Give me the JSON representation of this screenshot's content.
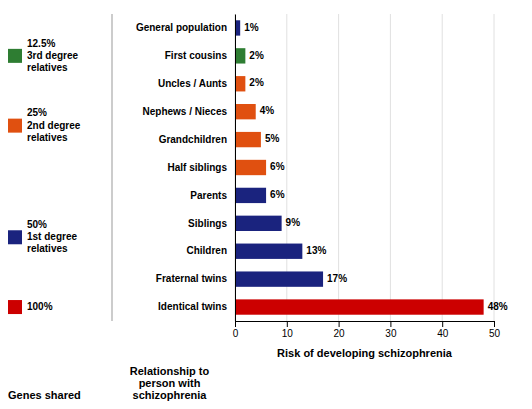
{
  "chart_data": {
    "type": "bar",
    "orientation": "horizontal",
    "categories": [
      "Identical twins",
      "Fraternal twins",
      "Children",
      "Siblings",
      "Parents",
      "Half siblings",
      "Grandchildren",
      "Nephews / Nieces",
      "Uncles / Aunts",
      "First cousins",
      "General population"
    ],
    "values": [
      48,
      17,
      13,
      9,
      6,
      6,
      5,
      4,
      2,
      2,
      1
    ],
    "value_labels": [
      "48%",
      "17%",
      "13%",
      "9%",
      "6%",
      "6%",
      "5%",
      "4%",
      "2%",
      "2%",
      "1%"
    ],
    "data_labels": true,
    "colors": [
      "#cc0000",
      "#1a237e",
      "#1a237e",
      "#1a237e",
      "#1a237e",
      "#e05010",
      "#e05010",
      "#e05010",
      "#e05010",
      "#2e7d32",
      "#1a237e"
    ],
    "xlim": [
      0,
      50
    ],
    "xticks": [
      0,
      10,
      20,
      30,
      40,
      50
    ],
    "xlabel": "Risk of developing schizophrenia",
    "ylabel": "Relationship to\nperson with\nschizophrenia",
    "grid": true,
    "legend_title": "Genes shared",
    "legend_groups": [
      {
        "name": "12.5%",
        "description": "3rd degree\nrelatives",
        "color": "#2e7d32",
        "categories": [
          "First cousins"
        ]
      },
      {
        "name": "25%",
        "description": "2nd degree\nrelatives",
        "color": "#e05010",
        "categories": [
          "Half siblings",
          "Grandchildren",
          "Nephews / Nieces",
          "Uncles / Aunts"
        ]
      },
      {
        "name": "50%",
        "description": "1st degree\nrelatives",
        "color": "#1a237e",
        "categories": [
          "Fraternal twins",
          "Children",
          "Siblings",
          "Parents"
        ]
      },
      {
        "name": "100%",
        "color": "#cc0000",
        "categories": [
          "Identical twins"
        ]
      }
    ]
  }
}
